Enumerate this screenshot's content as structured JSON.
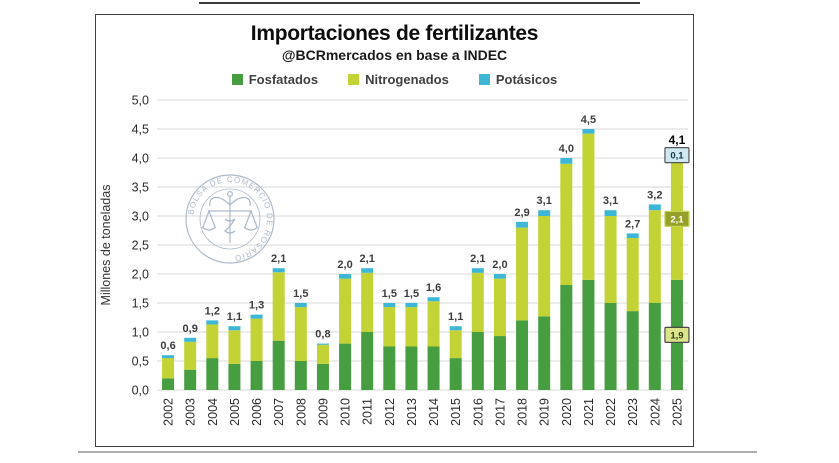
{
  "header": {
    "title": "Importaciones de fertilizantes",
    "subtitle": "@BCRmercados en base a INDEC"
  },
  "legend": [
    {
      "label": "Fosfatados",
      "color": "#469e41"
    },
    {
      "label": "Nitrogenados",
      "color": "#c3d235"
    },
    {
      "label": "Potásicos",
      "color": "#3eb7d7"
    }
  ],
  "watermark": {
    "text": "BOLSA DE COMERCIO DE ROSARIO",
    "color": "#a4b3c4"
  },
  "chart_data": {
    "type": "bar",
    "stacked": true,
    "title": "Importaciones de fertilizantes",
    "subtitle": "@BCRmercados en base a INDEC",
    "xlabel": "",
    "ylabel": "Millones de toneladas",
    "ylim": [
      0,
      5
    ],
    "ytick_step": 0.5,
    "decimal_separator": ",",
    "grid": true,
    "legend_position": "top",
    "categories": [
      "2002",
      "2003",
      "2004",
      "2005",
      "2006",
      "2007",
      "2008",
      "2009",
      "2010",
      "2011",
      "2012",
      "2013",
      "2014",
      "2015",
      "2016",
      "2017",
      "2018",
      "2019",
      "2020",
      "2021",
      "2022",
      "2023",
      "2024",
      "2025"
    ],
    "series": [
      {
        "name": "Fosfatados",
        "color": "#469e41",
        "values": [
          0.2,
          0.35,
          0.55,
          0.45,
          0.5,
          0.85,
          0.5,
          0.45,
          0.8,
          1.0,
          0.75,
          0.75,
          0.75,
          0.55,
          1.0,
          0.93,
          1.2,
          1.27,
          1.81,
          1.9,
          1.5,
          1.36,
          1.5,
          1.9
        ]
      },
      {
        "name": "Nitrogenados",
        "color": "#c3d235",
        "values": [
          0.35,
          0.48,
          0.58,
          0.58,
          0.73,
          1.18,
          0.93,
          0.33,
          1.12,
          1.02,
          0.68,
          0.68,
          0.78,
          0.48,
          1.02,
          0.99,
          1.6,
          1.73,
          2.09,
          2.52,
          1.5,
          1.26,
          1.6,
          2.1
        ]
      },
      {
        "name": "Potásicos",
        "color": "#3eb7d7",
        "values": [
          0.05,
          0.07,
          0.07,
          0.07,
          0.07,
          0.07,
          0.07,
          0.02,
          0.08,
          0.08,
          0.07,
          0.07,
          0.07,
          0.07,
          0.08,
          0.08,
          0.1,
          0.1,
          0.1,
          0.08,
          0.1,
          0.08,
          0.1,
          0.1
        ]
      }
    ],
    "totals": [
      0.6,
      0.9,
      1.2,
      1.1,
      1.3,
      2.1,
      1.5,
      0.8,
      2.0,
      2.1,
      1.5,
      1.5,
      1.6,
      1.1,
      2.1,
      2.0,
      2.9,
      3.1,
      4.0,
      4.5,
      3.1,
      2.7,
      3.2,
      4.1
    ],
    "highlight": {
      "category": "2025",
      "total_label": "4,1",
      "segment_labels": [
        {
          "series": "Fosfatados",
          "text": "1,9",
          "box_fill": "#dbe489",
          "box_stroke": "#4a4a4a",
          "text_color": "#2f3a12"
        },
        {
          "series": "Nitrogenados",
          "text": "2,1",
          "box_fill": "#96a028",
          "box_stroke": "#c5d455",
          "text_color": "#ffffff"
        },
        {
          "series": "Potásicos",
          "text": "0,1",
          "box_fill": "#cfe8f1",
          "box_stroke": "#565656",
          "text_color": "#123a4a"
        }
      ]
    }
  }
}
